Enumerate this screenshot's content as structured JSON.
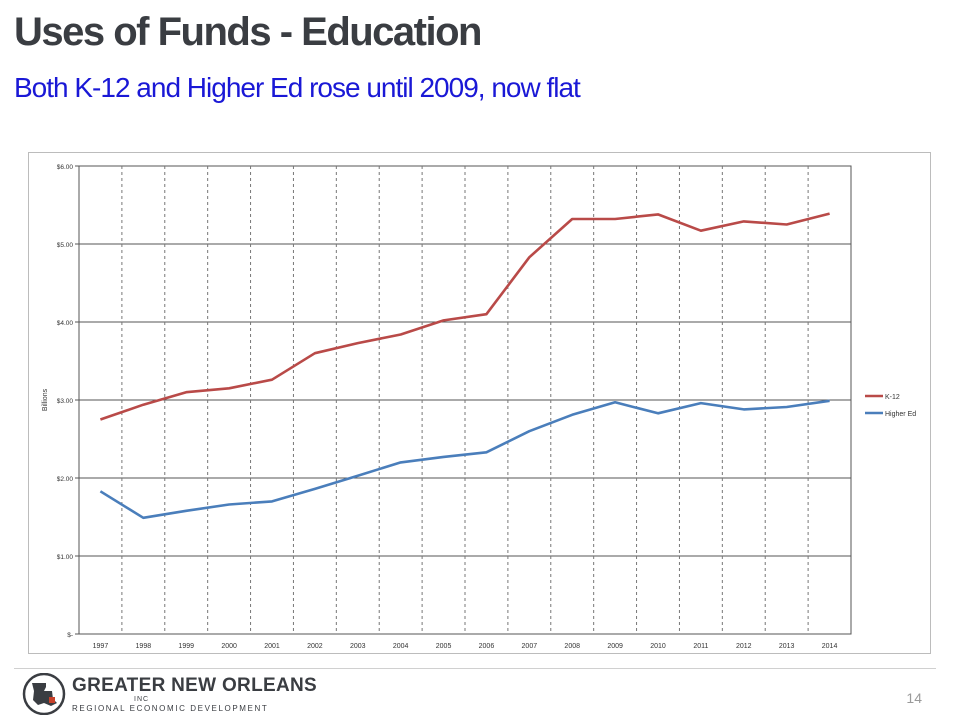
{
  "slide": {
    "title": "Uses of Funds - Education",
    "subtitle": "Both K-12 and Higher Ed rose until 2009, now flat",
    "page_number": "14"
  },
  "logo": {
    "name": "GREATER NEW ORLEANS",
    "inc": "INC",
    "tagline": "REGIONAL ECONOMIC DEVELOPMENT",
    "colors": {
      "dark": "#3a3d42",
      "accent": "#c8412a"
    }
  },
  "chart_data": {
    "type": "line",
    "title": "",
    "xlabel": "",
    "ylabel": "Billions",
    "categories": [
      "1997",
      "1998",
      "1999",
      "2000",
      "2001",
      "2002",
      "2003",
      "2004",
      "2005",
      "2006",
      "2007",
      "2008",
      "2009",
      "2010",
      "2011",
      "2012",
      "2013",
      "2014"
    ],
    "y_ticks": [
      "$-",
      "$1.00",
      "$2.00",
      "$3.00",
      "$4.00",
      "$5.00",
      "$6.00"
    ],
    "ylim": [
      0,
      6
    ],
    "series": [
      {
        "name": "K-12",
        "color": "#b94a48",
        "values": [
          2.75,
          2.94,
          3.1,
          3.15,
          3.26,
          3.6,
          3.73,
          3.84,
          4.02,
          4.1,
          4.83,
          5.32,
          5.32,
          5.38,
          5.17,
          5.29,
          5.25,
          5.39
        ]
      },
      {
        "name": "Higher Ed",
        "color": "#4a7ebb",
        "values": [
          1.83,
          1.49,
          1.58,
          1.66,
          1.7,
          1.86,
          2.03,
          2.2,
          2.27,
          2.33,
          2.6,
          2.81,
          2.97,
          2.83,
          2.96,
          2.88,
          2.91,
          2.99
        ]
      }
    ],
    "grid": true,
    "legend_position": "right"
  }
}
